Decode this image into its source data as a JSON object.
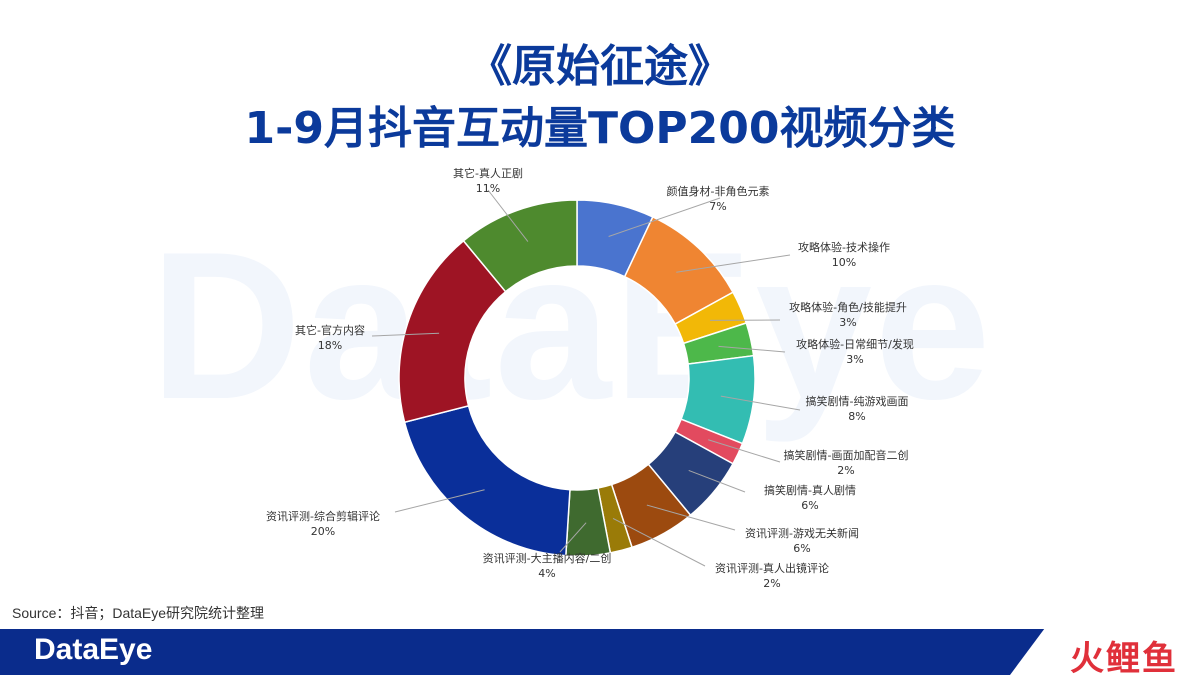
{
  "header": {
    "title_line1": "《原始征途》",
    "title_line2": "1-9月抖音互动量TOP200视频分类"
  },
  "watermark": "DataEye",
  "source": "Source：抖音；DataEye研究院统计整理",
  "footer": {
    "brand": "DataEye",
    "partner_logo": "火鲤鱼"
  },
  "chart_data": {
    "type": "pie",
    "donut": true,
    "categories": [
      "颜值身材-非角色元素",
      "攻略体验-技术操作",
      "攻略体验-角色/技能提升",
      "攻略体验-日常细节/发现",
      "搞笑剧情-纯游戏画面",
      "搞笑剧情-画面加配音二创",
      "搞笑剧情-真人剧情",
      "资讯评测-游戏无关新闻",
      "资讯评测-真人出镜评论",
      "资讯评测-大主播内容/二创",
      "资讯评测-综合剪辑评论",
      "其它-官方内容",
      "其它-真人正剧"
    ],
    "values": [
      7,
      10,
      3,
      3,
      8,
      2,
      6,
      6,
      2,
      4,
      20,
      18,
      11
    ],
    "value_labels": [
      "7%",
      "10%",
      "3%",
      "3%",
      "8%",
      "2%",
      "6%",
      "6%",
      "2%",
      "4%",
      "20%",
      "18%",
      "11%"
    ],
    "colors": [
      "#4a74cf",
      "#ef8532",
      "#f2b807",
      "#4db84a",
      "#33bdb2",
      "#e24a5f",
      "#263f7a",
      "#9c4a0f",
      "#9a7b08",
      "#3f6a2f",
      "#0a2f9a",
      "#9e1424",
      "#4e8a2e"
    ]
  }
}
